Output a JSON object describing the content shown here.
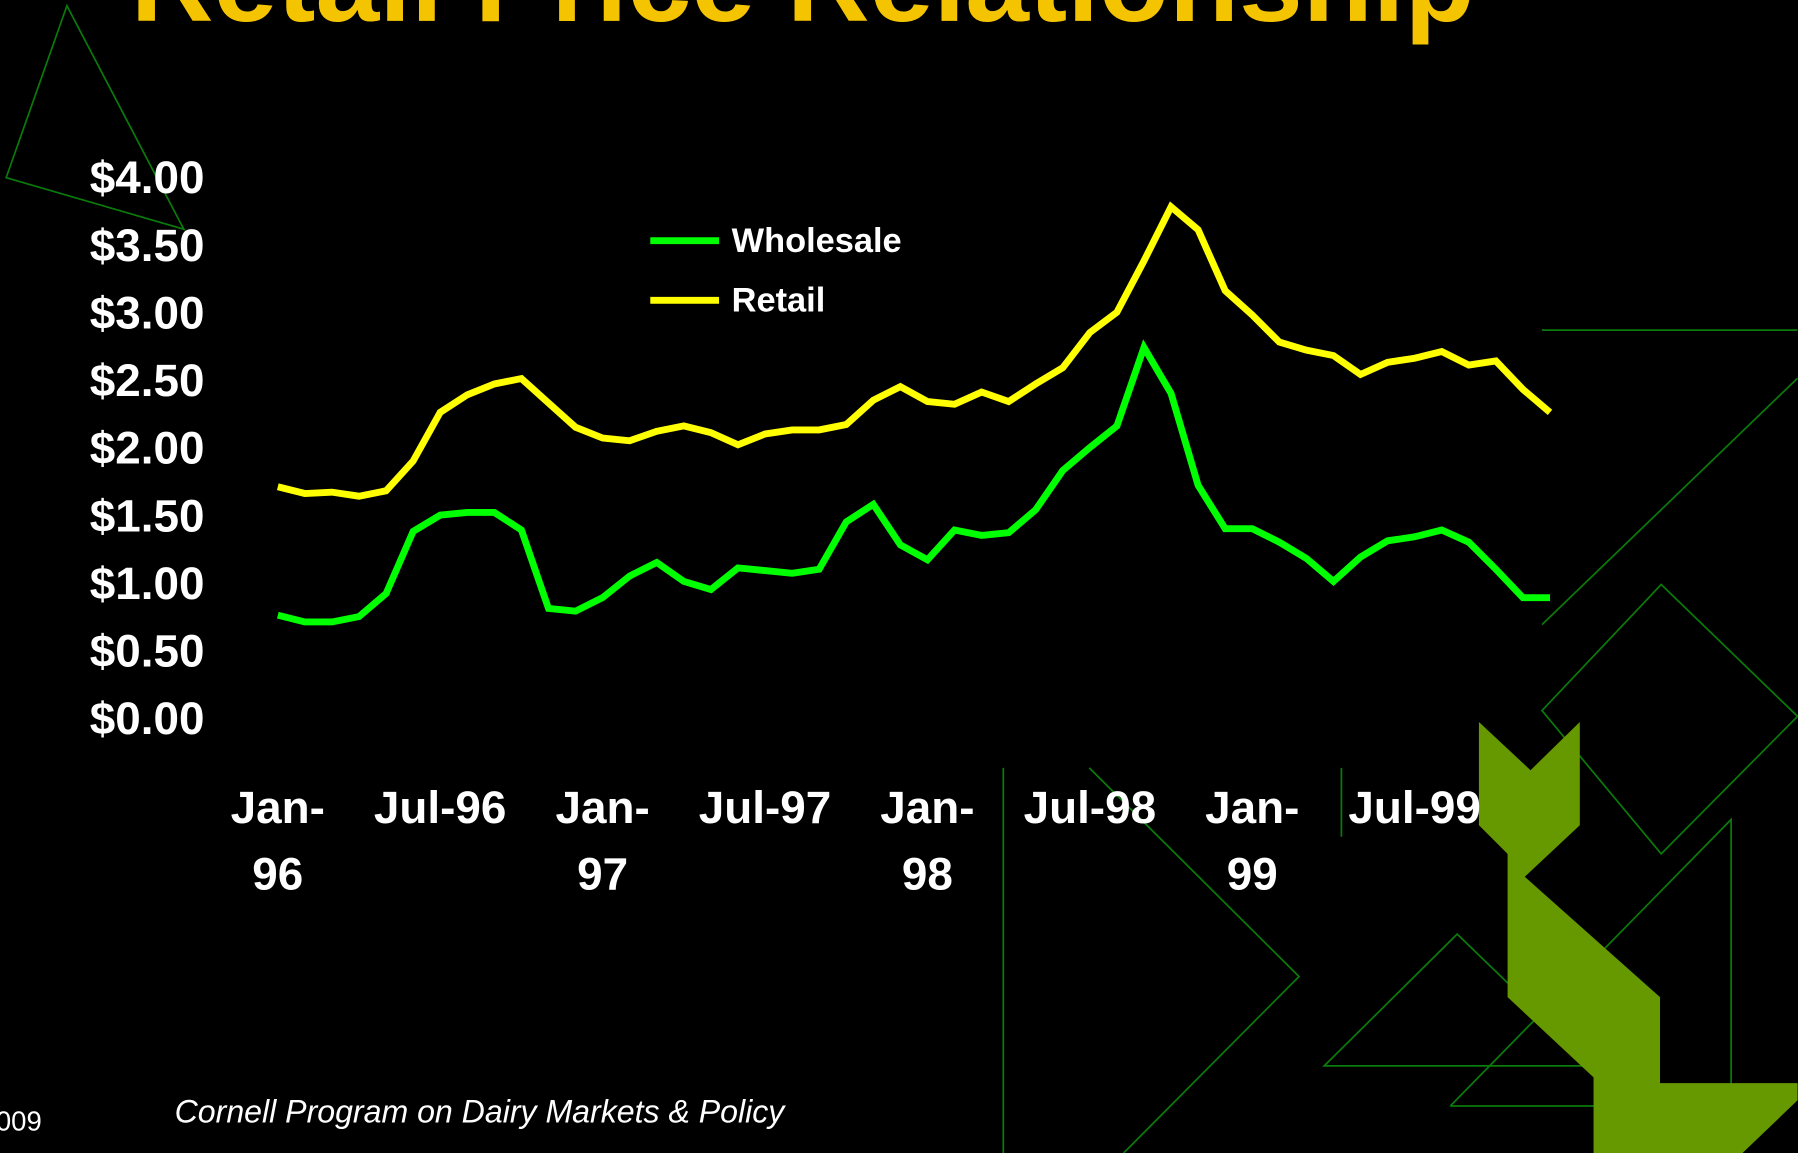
{
  "chart_data": {
    "type": "line",
    "title": "Retail Price Relationship",
    "footer": "Cornell Program on Dairy Markets & Policy",
    "corner_text": "009",
    "categories": [
      "Jan-96",
      null,
      null,
      null,
      null,
      null,
      "Jul-96",
      null,
      null,
      null,
      null,
      null,
      "Jan-97",
      null,
      null,
      null,
      null,
      null,
      "Jul-97",
      null,
      null,
      null,
      null,
      null,
      "Jan-98",
      null,
      null,
      null,
      null,
      null,
      "Jul-98",
      null,
      null,
      null,
      null,
      null,
      "Jan-99",
      null,
      null,
      null,
      null,
      null,
      "Jul-99",
      null,
      null,
      null,
      null,
      null
    ],
    "series": [
      {
        "name": "Wholesale",
        "color": "#00ff00",
        "values": [
          0.79,
          0.74,
          0.74,
          0.78,
          0.95,
          1.41,
          1.53,
          1.55,
          1.55,
          1.42,
          0.84,
          0.82,
          0.92,
          1.08,
          1.18,
          1.04,
          0.98,
          1.14,
          1.12,
          1.1,
          1.13,
          1.48,
          1.61,
          1.31,
          1.2,
          1.42,
          1.38,
          1.4,
          1.57,
          1.86,
          2.03,
          2.19,
          2.77,
          2.43,
          1.75,
          1.43,
          1.43,
          1.33,
          1.21,
          1.04,
          1.22,
          1.34,
          1.37,
          1.42,
          1.33,
          1.13,
          0.92,
          0.92
        ]
      },
      {
        "name": "Retail",
        "color": "#ffff00",
        "values": [
          1.74,
          1.69,
          1.7,
          1.67,
          1.71,
          1.93,
          2.29,
          2.42,
          2.5,
          2.54,
          2.36,
          2.18,
          2.1,
          2.08,
          2.15,
          2.19,
          2.14,
          2.05,
          2.13,
          2.16,
          2.16,
          2.2,
          2.38,
          2.48,
          2.37,
          2.35,
          2.44,
          2.37,
          2.5,
          2.62,
          2.88,
          3.03,
          3.41,
          3.81,
          3.64,
          3.19,
          3.01,
          2.81,
          2.75,
          2.71,
          2.57,
          2.66,
          2.69,
          2.74,
          2.64,
          2.67,
          2.46,
          2.29
        ]
      }
    ],
    "ylim": [
      0,
      4
    ],
    "yticks": [
      {
        "value": 0,
        "label": "$0.00"
      },
      {
        "value": 0.5,
        "label": "$0.50"
      },
      {
        "value": 1,
        "label": "$1.00"
      },
      {
        "value": 1.5,
        "label": "$1.50"
      },
      {
        "value": 2,
        "label": "$2.00"
      },
      {
        "value": 2.5,
        "label": "$2.50"
      },
      {
        "value": 3,
        "label": "$3.00"
      },
      {
        "value": 3.5,
        "label": "$3.50"
      },
      {
        "value": 4,
        "label": "$4.00"
      }
    ],
    "grid": false
  }
}
